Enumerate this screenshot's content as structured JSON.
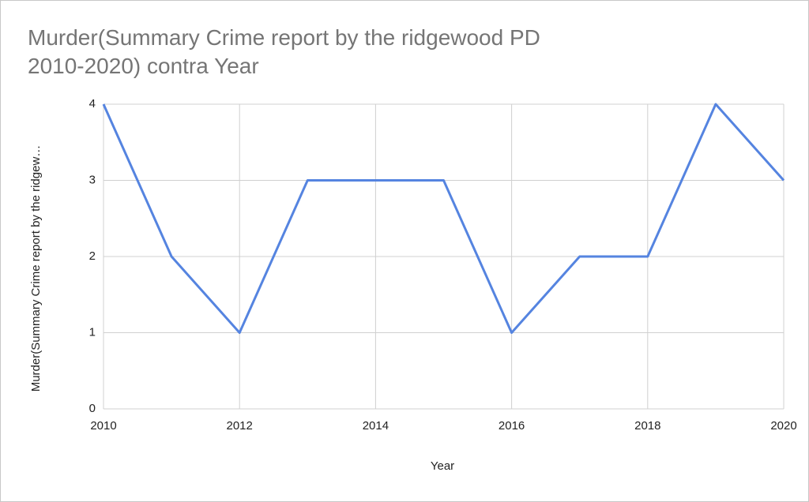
{
  "chart_data": {
    "type": "line",
    "title": "Murder(Summary Crime report by the ridgewood PD 2010-2020) contra Year",
    "x_label": "Year",
    "y_label": "Murder(Summary Crime report by the ridgew…",
    "x": [
      2010,
      2011,
      2012,
      2013,
      2014,
      2015,
      2016,
      2017,
      2018,
      2019,
      2020
    ],
    "values": [
      4,
      2,
      1,
      3,
      3,
      3,
      1,
      2,
      2,
      4,
      3
    ],
    "color": "#5584e0",
    "xlim": [
      2010,
      2020
    ],
    "xticks": [
      2010,
      2012,
      2014,
      2016,
      2018,
      2020
    ],
    "ylim": [
      0,
      4
    ],
    "yticks": [
      0,
      1,
      2,
      3,
      4
    ],
    "grid": true
  }
}
